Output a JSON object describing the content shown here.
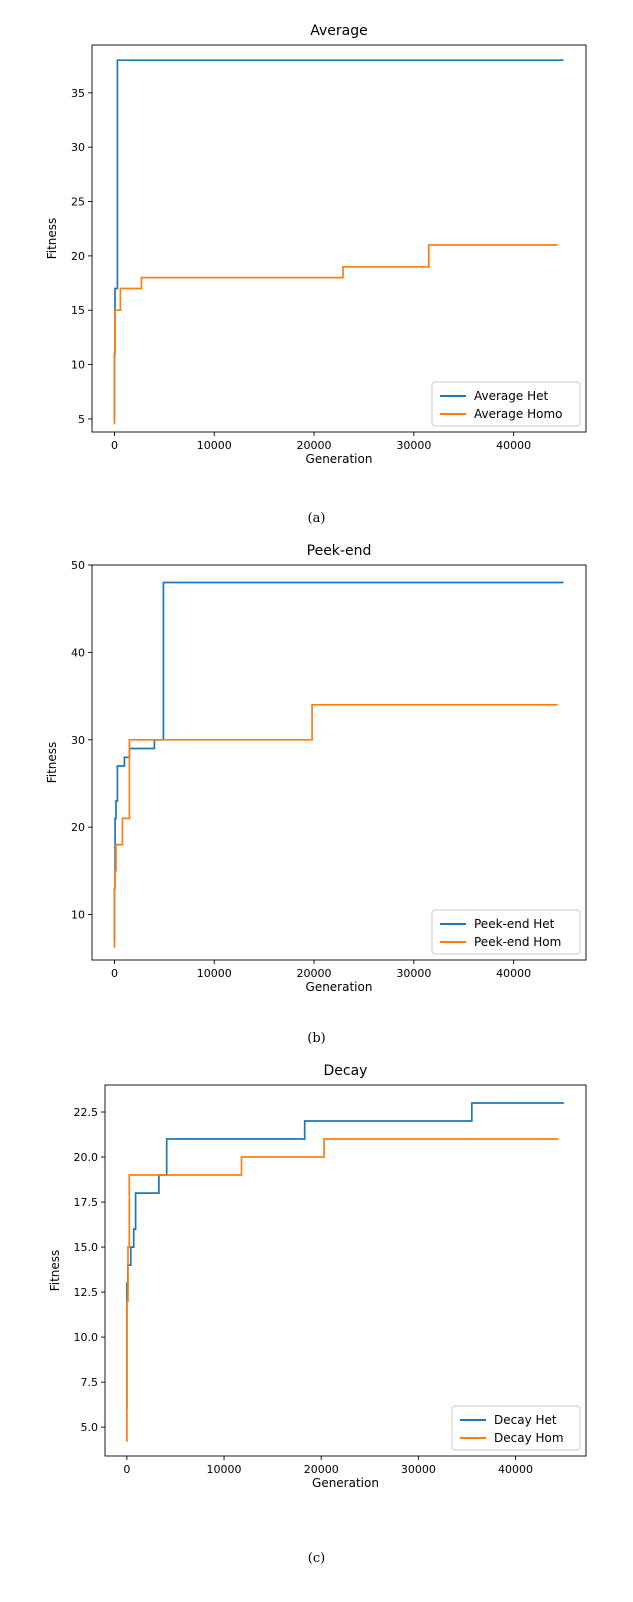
{
  "series_colors": [
    "#1f77b4",
    "#ff7f0e"
  ],
  "captions": [
    "(a)",
    "(b)",
    "(c)"
  ],
  "chart_data": [
    {
      "type": "line",
      "title": "Average",
      "xlabel": "Generation",
      "ylabel": "Fitness",
      "xlim": [
        -2250,
        47250
      ],
      "ylim": [
        3.8,
        39.4
      ],
      "xticks": [
        0,
        10000,
        20000,
        30000,
        40000
      ],
      "xtick_labels": [
        "0",
        "10000",
        "20000",
        "30000",
        "40000"
      ],
      "yticks": [
        5,
        10,
        15,
        20,
        25,
        30,
        35
      ],
      "ytick_labels": [
        "5",
        "10",
        "15",
        "20",
        "25",
        "30",
        "35"
      ],
      "legend": "bottom-right",
      "series": [
        {
          "name": "Average Het",
          "x": [
            0,
            0,
            50,
            50,
            100,
            100,
            300,
            300,
            45000
          ],
          "y": [
            5,
            11,
            11,
            17,
            17,
            17,
            17,
            38,
            38
          ]
        },
        {
          "name": "Average Homo",
          "x": [
            0,
            0,
            40,
            40,
            150,
            150,
            600,
            600,
            2700,
            2700,
            22900,
            22900,
            31500,
            31500,
            44400
          ],
          "y": [
            4.5,
            11,
            11,
            15,
            15,
            15,
            15,
            17,
            17,
            18,
            18,
            19,
            19,
            21,
            21
          ]
        }
      ]
    },
    {
      "type": "line",
      "title": "Peek-end",
      "xlabel": "Generation",
      "ylabel": "Fitness",
      "xlim": [
        -2250,
        47250
      ],
      "ylim": [
        4.8,
        50
      ],
      "xticks": [
        0,
        10000,
        20000,
        30000,
        40000
      ],
      "xtick_labels": [
        "0",
        "10000",
        "20000",
        "30000",
        "40000"
      ],
      "yticks": [
        10,
        20,
        30,
        40,
        50
      ],
      "ytick_labels": [
        "10",
        "20",
        "30",
        "40",
        "50"
      ],
      "legend": "bottom-right",
      "series": [
        {
          "name": "Peek-end Het",
          "x": [
            0,
            0,
            60,
            60,
            150,
            150,
            300,
            300,
            500,
            500,
            1000,
            1000,
            1500,
            1500,
            4000,
            4000,
            4900,
            4900,
            45000
          ],
          "y": [
            7,
            13,
            13,
            21,
            21,
            23,
            23,
            27,
            27,
            27,
            27,
            28,
            28,
            29,
            29,
            30,
            30,
            48,
            48
          ]
        },
        {
          "name": "Peek-end Hom",
          "x": [
            0,
            0,
            60,
            60,
            150,
            150,
            400,
            400,
            800,
            800,
            1500,
            1500,
            19800,
            19800,
            44400
          ],
          "y": [
            6.2,
            13,
            13,
            15,
            15,
            18,
            18,
            18,
            18,
            21,
            21,
            30,
            30,
            34,
            34
          ]
        }
      ]
    },
    {
      "type": "line",
      "title": "Decay",
      "xlabel": "Generation",
      "ylabel": "Fitness",
      "xlim": [
        -2250,
        47250
      ],
      "ylim": [
        3.4,
        24.0
      ],
      "xticks": [
        0,
        10000,
        20000,
        30000,
        40000
      ],
      "xtick_labels": [
        "0",
        "10000",
        "20000",
        "30000",
        "40000"
      ],
      "yticks": [
        5.0,
        7.5,
        10.0,
        12.5,
        15.0,
        17.5,
        20.0,
        22.5
      ],
      "ytick_labels": [
        "5.0",
        "7.5",
        "10.0",
        "12.5",
        "15.0",
        "17.5",
        "20.0",
        "22.5"
      ],
      "legend": "bottom-right",
      "series": [
        {
          "name": "Decay Het",
          "x": [
            0,
            0,
            100,
            100,
            400,
            400,
            700,
            700,
            900,
            900,
            3300,
            3300,
            4100,
            4100,
            18300,
            18300,
            35500,
            35500,
            45000
          ],
          "y": [
            6,
            13,
            13,
            14,
            14,
            15,
            15,
            16,
            16,
            18,
            18,
            19,
            19,
            21,
            21,
            22,
            22,
            23,
            23
          ]
        },
        {
          "name": "Decay Hom",
          "x": [
            0,
            0,
            120,
            120,
            250,
            250,
            11800,
            11800,
            20300,
            20300,
            44400
          ],
          "y": [
            4.2,
            12,
            12,
            15,
            15,
            19,
            19,
            20,
            20,
            21,
            21
          ]
        }
      ]
    }
  ]
}
